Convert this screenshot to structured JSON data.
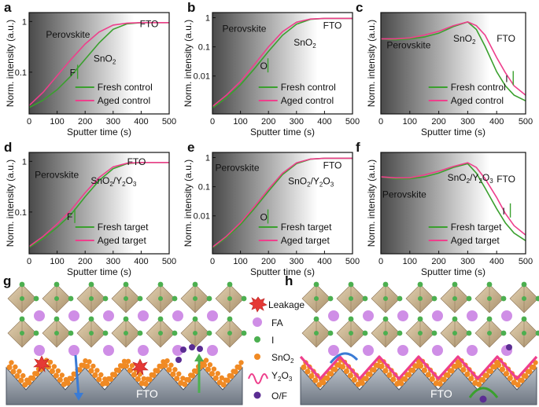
{
  "colors": {
    "fresh": "#3aa02e",
    "aged": "#ee3f8c",
    "axis": "#111111",
    "sno2": "#f08a24",
    "iodine": "#4caf50",
    "fa": "#cf8ee6",
    "of": "#5b2d93",
    "fto": "#9aa2ad",
    "octa": "#cbb392"
  },
  "chart_data": [
    {
      "type": "line",
      "panel": "a",
      "ylabel": "Norm. intensity (a.u.)",
      "xlabel": "Sputter time (s)",
      "xlim": [
        0,
        500
      ],
      "ylim": [
        0.015,
        1.5
      ],
      "yscale": "log",
      "xticks": [
        "0",
        "100",
        "200",
        "300",
        "400",
        "500"
      ],
      "yticks": [
        "0.1",
        "1"
      ],
      "annotations": [
        {
          "text": "Perovskite",
          "x": 60,
          "y": 0.48
        },
        {
          "text": "SnO2",
          "x": 230,
          "y": 0.16
        },
        {
          "text": "FTO",
          "x": 395,
          "y": 0.78
        },
        {
          "text": "F",
          "x": 145,
          "y": 0.085
        }
      ],
      "series": [
        {
          "name": "Fresh control",
          "color_key": "fresh",
          "x": [
            0,
            50,
            100,
            150,
            200,
            250,
            300,
            350,
            400,
            450,
            500
          ],
          "y": [
            0.02,
            0.028,
            0.045,
            0.085,
            0.18,
            0.38,
            0.7,
            0.9,
            0.95,
            0.95,
            0.95
          ]
        },
        {
          "name": "Aged control",
          "color_key": "aged",
          "x": [
            0,
            50,
            100,
            150,
            200,
            250,
            300,
            350,
            400,
            450,
            500
          ],
          "y": [
            0.022,
            0.04,
            0.085,
            0.18,
            0.36,
            0.62,
            0.85,
            0.93,
            0.95,
            0.95,
            0.95
          ]
        }
      ]
    },
    {
      "type": "line",
      "panel": "b",
      "ylabel": "Norm. intensity (a.u.)",
      "xlabel": "Sputter time (s)",
      "xlim": [
        0,
        500
      ],
      "ylim": [
        0.0005,
        1.5
      ],
      "yscale": "log",
      "xticks": [
        "0",
        "100",
        "200",
        "300",
        "400",
        "500"
      ],
      "yticks": [
        "0.01",
        "0.1",
        "1"
      ],
      "annotations": [
        {
          "text": "Perovskite",
          "x": 35,
          "y": 0.33
        },
        {
          "text": "SnO2",
          "x": 290,
          "y": 0.11
        },
        {
          "text": "FTO",
          "x": 395,
          "y": 0.42
        },
        {
          "text": "O",
          "x": 170,
          "y": 0.017
        }
      ],
      "series": [
        {
          "name": "Fresh control",
          "color_key": "fresh",
          "x": [
            0,
            50,
            100,
            150,
            200,
            250,
            300,
            350,
            400,
            450,
            500
          ],
          "y": [
            0.0008,
            0.0018,
            0.005,
            0.018,
            0.07,
            0.25,
            0.6,
            0.88,
            0.95,
            0.95,
            0.95
          ]
        },
        {
          "name": "Aged control",
          "color_key": "aged",
          "x": [
            0,
            50,
            100,
            150,
            200,
            250,
            300,
            350,
            400,
            450,
            500
          ],
          "y": [
            0.0009,
            0.0022,
            0.0065,
            0.025,
            0.1,
            0.33,
            0.7,
            0.9,
            0.95,
            0.95,
            0.95
          ]
        }
      ]
    },
    {
      "type": "line",
      "panel": "c",
      "ylabel": "Norm. intensity (a.u.)",
      "xlabel": "Sputter time (s)",
      "xlim": [
        0,
        500
      ],
      "ylim": [
        0,
        1.08
      ],
      "yscale": "linear",
      "xticks": [
        "0",
        "100",
        "200",
        "300",
        "400",
        "500"
      ],
      "yticks": [],
      "annotations": [
        {
          "text": "Perovskite",
          "x": 20,
          "y": 0.7
        },
        {
          "text": "SnO2",
          "x": 250,
          "y": 0.77
        },
        {
          "text": "FTO",
          "x": 400,
          "y": 0.77
        },
        {
          "text": "I",
          "x": 430,
          "y": 0.34
        }
      ],
      "series": [
        {
          "name": "Fresh control",
          "color_key": "fresh",
          "x": [
            0,
            50,
            100,
            150,
            200,
            250,
            300,
            330,
            360,
            400,
            430,
            460,
            500
          ],
          "y": [
            0.8,
            0.79,
            0.8,
            0.82,
            0.86,
            0.93,
            0.98,
            0.9,
            0.72,
            0.45,
            0.3,
            0.2,
            0.14
          ]
        },
        {
          "name": "Aged control",
          "color_key": "aged",
          "x": [
            0,
            50,
            100,
            150,
            200,
            250,
            300,
            330,
            360,
            400,
            430,
            460,
            500
          ],
          "y": [
            0.8,
            0.8,
            0.81,
            0.84,
            0.88,
            0.94,
            0.98,
            0.94,
            0.84,
            0.6,
            0.44,
            0.3,
            0.2
          ]
        }
      ]
    },
    {
      "type": "line",
      "panel": "d",
      "ylabel": "Norm. intensity (a.u.)",
      "xlabel": "Sputter time (s)",
      "xlim": [
        0,
        500
      ],
      "ylim": [
        0.015,
        1.5
      ],
      "yscale": "log",
      "xticks": [
        "0",
        "100",
        "200",
        "300",
        "400",
        "500"
      ],
      "yticks": [
        "0.1",
        "1"
      ],
      "annotations": [
        {
          "text": "Perovskite",
          "x": 20,
          "y": 0.47
        },
        {
          "text": "SnO2/Y2O3",
          "x": 220,
          "y": 0.36
        },
        {
          "text": "FTO",
          "x": 350,
          "y": 0.85
        },
        {
          "text": "F",
          "x": 135,
          "y": 0.07
        }
      ],
      "series": [
        {
          "name": "Fresh target",
          "color_key": "fresh",
          "x": [
            0,
            50,
            100,
            150,
            200,
            250,
            300,
            350,
            400,
            450,
            500
          ],
          "y": [
            0.02,
            0.03,
            0.05,
            0.09,
            0.2,
            0.42,
            0.72,
            0.9,
            0.95,
            0.95,
            0.95
          ]
        },
        {
          "name": "Aged target",
          "color_key": "aged",
          "x": [
            0,
            50,
            100,
            150,
            200,
            250,
            300,
            350,
            400,
            450,
            500
          ],
          "y": [
            0.021,
            0.033,
            0.058,
            0.11,
            0.24,
            0.48,
            0.78,
            0.92,
            0.95,
            0.95,
            0.95
          ]
        }
      ]
    },
    {
      "type": "line",
      "panel": "e",
      "ylabel": "Norm. intensity (a.u.)",
      "xlabel": "Sputter time (s)",
      "xlim": [
        0,
        500
      ],
      "ylim": [
        0.0005,
        1.5
      ],
      "yscale": "log",
      "xticks": [
        "0",
        "100",
        "200",
        "300",
        "400",
        "500"
      ],
      "yticks": [
        "0.01",
        "0.1",
        "1"
      ],
      "annotations": [
        {
          "text": "Perovskite",
          "x": 10,
          "y": 0.35
        },
        {
          "text": "SnO2/Y2O3",
          "x": 270,
          "y": 0.12
        },
        {
          "text": "FTO",
          "x": 395,
          "y": 0.42
        },
        {
          "text": "O",
          "x": 170,
          "y": 0.007
        }
      ],
      "series": [
        {
          "name": "Fresh target",
          "color_key": "fresh",
          "x": [
            0,
            50,
            100,
            150,
            200,
            250,
            300,
            350,
            400,
            450,
            500
          ],
          "y": [
            0.0008,
            0.0018,
            0.005,
            0.018,
            0.07,
            0.26,
            0.62,
            0.88,
            0.95,
            0.95,
            0.95
          ]
        },
        {
          "name": "Aged target",
          "color_key": "aged",
          "x": [
            0,
            50,
            100,
            150,
            200,
            250,
            300,
            350,
            400,
            450,
            500
          ],
          "y": [
            0.00085,
            0.002,
            0.0058,
            0.021,
            0.082,
            0.29,
            0.66,
            0.89,
            0.95,
            0.95,
            0.95
          ]
        }
      ]
    },
    {
      "type": "line",
      "panel": "f",
      "ylabel": "Norm. intensity (a.u.)",
      "xlabel": "Sputter time (s)",
      "xlim": [
        0,
        500
      ],
      "ylim": [
        0,
        1.08
      ],
      "yscale": "linear",
      "xticks": [
        "0",
        "100",
        "200",
        "300",
        "400",
        "500"
      ],
      "yticks": [],
      "annotations": [
        {
          "text": "Perovskite",
          "x": 5,
          "y": 0.6
        },
        {
          "text": "SnO2/Y2O3",
          "x": 230,
          "y": 0.78
        },
        {
          "text": "FTO",
          "x": 400,
          "y": 0.76
        },
        {
          "text": "I",
          "x": 420,
          "y": 0.42
        }
      ],
      "series": [
        {
          "name": "Fresh target",
          "color_key": "fresh",
          "x": [
            0,
            50,
            100,
            150,
            200,
            250,
            300,
            330,
            360,
            400,
            430,
            460,
            500
          ],
          "y": [
            0.82,
            0.8,
            0.8,
            0.82,
            0.86,
            0.92,
            0.96,
            0.86,
            0.7,
            0.48,
            0.33,
            0.22,
            0.14
          ]
        },
        {
          "name": "Aged target",
          "color_key": "aged",
          "x": [
            0,
            50,
            100,
            150,
            200,
            250,
            300,
            330,
            360,
            400,
            430,
            460,
            500
          ],
          "y": [
            0.82,
            0.81,
            0.81,
            0.84,
            0.88,
            0.93,
            0.97,
            0.92,
            0.8,
            0.6,
            0.43,
            0.3,
            0.2
          ]
        }
      ]
    }
  ],
  "schematic": {
    "panel_g": {
      "label": "g",
      "substrate": "FTO"
    },
    "panel_h": {
      "label": "h",
      "substrate": "FTO"
    },
    "legend": [
      {
        "key": "leakage",
        "label": "Leakage"
      },
      {
        "key": "fa",
        "label": "FA"
      },
      {
        "key": "iodine",
        "label": "I"
      },
      {
        "key": "sno2",
        "label": "SnO2"
      },
      {
        "key": "y2o3",
        "label": "Y2O3"
      },
      {
        "key": "of",
        "label": "O/F"
      }
    ]
  }
}
